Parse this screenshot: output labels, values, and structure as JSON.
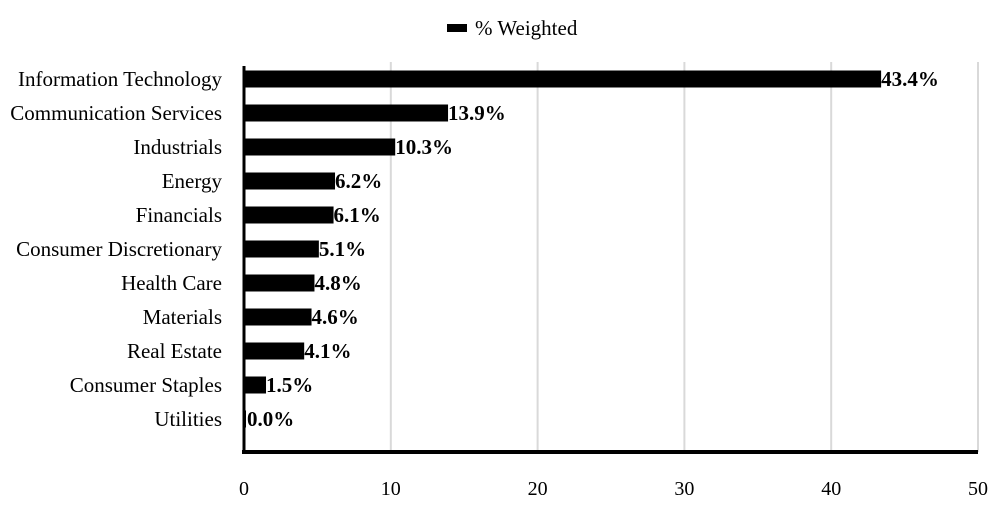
{
  "chart_data": {
    "type": "bar",
    "orientation": "horizontal",
    "categories": [
      "Information Technology",
      "Communication Services",
      "Industrials",
      "Energy",
      "Financials",
      "Consumer Discretionary",
      "Health Care",
      "Materials",
      "Real Estate",
      "Consumer Staples",
      "Utilities"
    ],
    "series": [
      {
        "name": "% Weighted",
        "values": [
          43.4,
          13.9,
          10.3,
          6.2,
          6.1,
          5.1,
          4.8,
          4.6,
          4.1,
          1.5,
          0.0
        ],
        "labels": [
          "43.4%",
          "13.9%",
          "10.3%",
          "6.2%",
          "6.1%",
          "5.1%",
          "4.8%",
          "4.6%",
          "4.1%",
          "1.5%",
          "0.0%"
        ],
        "color": "#000000"
      }
    ],
    "xlim": [
      0,
      50
    ],
    "xticks": [
      0,
      10,
      20,
      30,
      40,
      50
    ],
    "grid": "vertical",
    "gridColor": "#d9d9d9",
    "legend_position": "top-center",
    "title": "",
    "xlabel": "",
    "ylabel": ""
  }
}
